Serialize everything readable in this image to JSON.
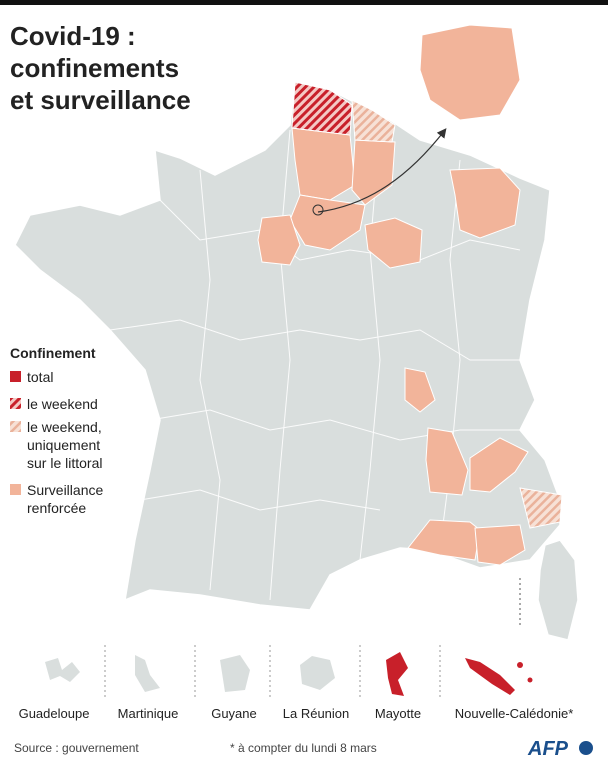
{
  "title": [
    "Covid-19 :",
    "confinements",
    "et surveillance"
  ],
  "legend": {
    "title": "Confinement",
    "items": [
      {
        "lines": [
          "total"
        ]
      },
      {
        "lines": [
          "le weekend"
        ]
      },
      {
        "lines": [
          "le weekend,",
          "uniquement",
          "sur le littoral"
        ]
      },
      {
        "lines": [
          "Surveillance",
          "renforcée"
        ]
      }
    ]
  },
  "territories": [
    "Guadeloupe",
    "Martinique",
    "Guyane",
    "La Réunion",
    "Mayotte",
    "Nouvelle-Calédonie*"
  ],
  "footer": {
    "source": "Source : gouvernement",
    "note": "* à compter du lundi  8 mars",
    "logo": "AFP"
  }
}
